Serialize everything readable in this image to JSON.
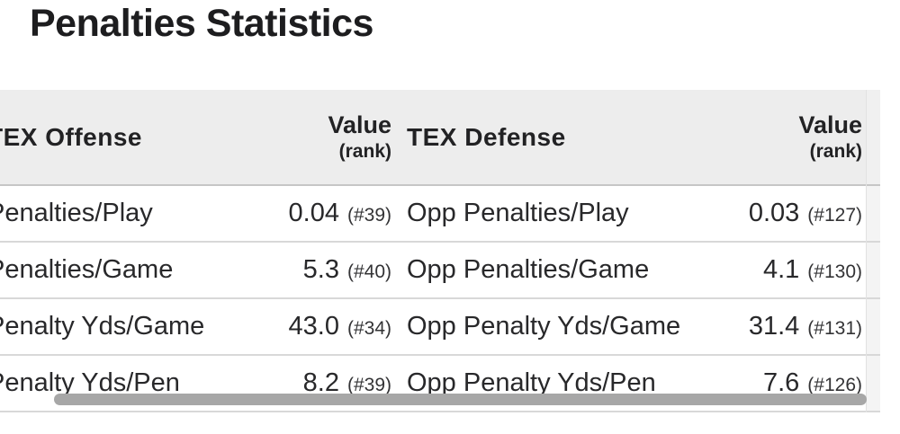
{
  "title": "Penalties Statistics",
  "table": {
    "headers": {
      "offense": "TEX Offense",
      "offense_value": "Value",
      "offense_rank": "(rank)",
      "defense": "TEX Defense",
      "defense_value": "Value",
      "defense_rank": "(rank)"
    },
    "rows": [
      {
        "offense_label": "Penalties/Play",
        "offense_value": "0.04",
        "offense_rank": "(#39)",
        "defense_label": "Opp Penalties/Play",
        "defense_value": "0.03",
        "defense_rank": "(#127)"
      },
      {
        "offense_label": "Penalties/Game",
        "offense_value": "5.3",
        "offense_rank": "(#40)",
        "defense_label": "Opp Penalties/Game",
        "defense_value": "4.1",
        "defense_rank": "(#130)"
      },
      {
        "offense_label": "Penalty Yds/Game",
        "offense_value": "43.0",
        "offense_rank": "(#34)",
        "defense_label": "Opp Penalty Yds/Game",
        "defense_value": "31.4",
        "defense_rank": "(#131)"
      },
      {
        "offense_label": "Penalty Yds/Pen",
        "offense_value": "8.2",
        "offense_rank": "(#39)",
        "defense_label": "Opp Penalty Yds/Pen",
        "defense_value": "7.6",
        "defense_rank": "(#126)"
      }
    ]
  },
  "scrollbar": {
    "orientation": "horizontal"
  },
  "colors": {
    "header_bg": "#ededed",
    "header_border": "#c6c6c6",
    "row_border": "#d8d8d8",
    "sliver_bg": "#f4f4f4",
    "scrollbar_thumb": "#a7a7a7",
    "text": "#232325"
  }
}
